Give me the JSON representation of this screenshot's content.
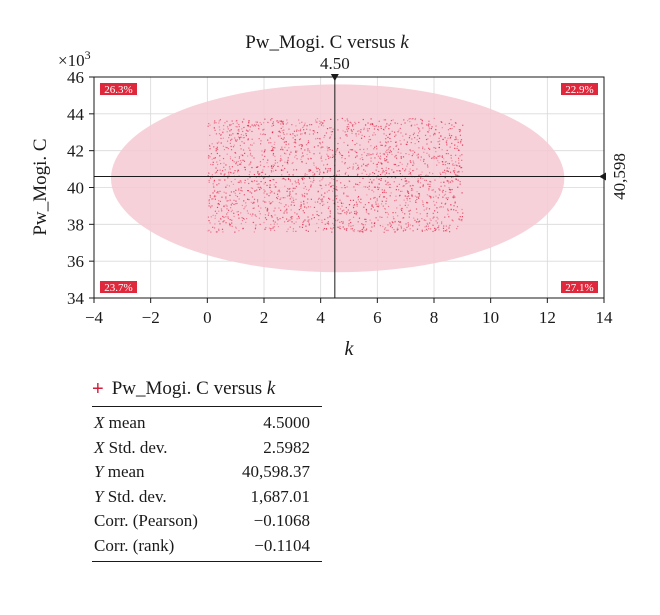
{
  "chart_data": {
    "type": "scatter",
    "title_prefix": "Pw_Mogi. C versus ",
    "title_var": "k",
    "xlabel": "k",
    "ylabel": "Pw_Mogi. C",
    "y_multiplier_label": "×10",
    "y_multiplier_exp": "3",
    "xlim": [
      -4,
      14
    ],
    "ylim": [
      34,
      46
    ],
    "x_ticks": [
      -4,
      -2,
      0,
      2,
      4,
      6,
      8,
      10,
      12,
      14
    ],
    "x_tick_labels": [
      "−4",
      "−2",
      "0",
      "2",
      "4",
      "6",
      "8",
      "10",
      "12",
      "14"
    ],
    "y_ticks": [
      34,
      36,
      38,
      40,
      42,
      44,
      46
    ],
    "y_tick_labels": [
      "34",
      "36",
      "38",
      "40",
      "42",
      "44",
      "46"
    ],
    "grid": true,
    "series": [
      {
        "x_range": [
          0,
          9
        ],
        "y_range": [
          37.6,
          43.8
        ],
        "x_mean": 4.5,
        "y_mean": 40.598,
        "note": "uniform scatter cloud"
      }
    ],
    "ellipse": {
      "center": [
        4.5,
        40.6
      ],
      "x_extent": [
        -3.4,
        12.6
      ],
      "y_extent": [
        35.4,
        45.6
      ]
    },
    "crosshair": {
      "x": 4.5,
      "y": 40.598,
      "x_label": "4.50",
      "y_label": "40,598"
    },
    "quadrant_percents": {
      "top_left": "26.3%",
      "top_right": "22.9%",
      "bottom_left": "23.7%",
      "bottom_right": "27.1%"
    },
    "colors": {
      "points": "#e0284a",
      "ellipse": "#f6c9d2",
      "badge": "#e0283c",
      "grid": "#d9d9d9"
    }
  },
  "legend": {
    "marker": "+",
    "label_prefix": "Pw_Mogi. C versus ",
    "label_var": "k"
  },
  "stats": [
    {
      "label": "X mean",
      "value": "4.5000"
    },
    {
      "label": "X Std. dev.",
      "value": "2.5982"
    },
    {
      "label": "Y mean",
      "value": "40,598.37"
    },
    {
      "label": "Y Std. dev.",
      "value": "1,687.01"
    },
    {
      "label": "Corr. (Pearson)",
      "value": "−0.1068"
    },
    {
      "label": "Corr. (rank)",
      "value": "−0.1104"
    }
  ]
}
